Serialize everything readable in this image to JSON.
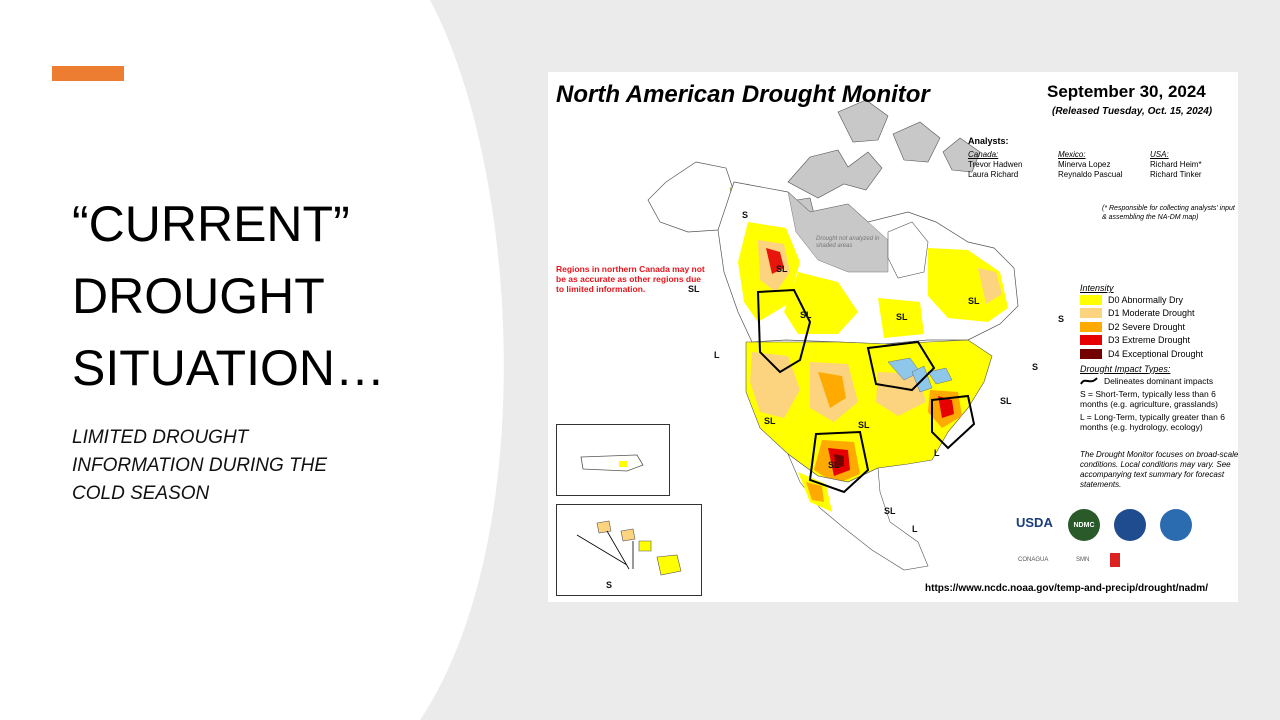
{
  "slide": {
    "title_lines": [
      "“CURRENT”",
      "DROUGHT",
      "SITUATION…"
    ],
    "subtitle_lines": [
      "LIMITED DROUGHT",
      "INFORMATION DURING THE",
      "COLD SEASON"
    ],
    "accent_color": "#ed7d31"
  },
  "map": {
    "title": "North American Drought Monitor",
    "date": "September 30, 2024",
    "release": "(Released Tuesday, Oct. 15, 2024)",
    "analysts_heading": "Analysts:",
    "analysts": [
      {
        "country": "Canada:",
        "names": [
          "Trevor Hadwen",
          "Laura Richard"
        ]
      },
      {
        "country": "Mexico:",
        "names": [
          "Minerva Lopez",
          "Reynaldo Pascual"
        ]
      },
      {
        "country": "USA:",
        "names": [
          "Richard Heim*",
          "Richard Tinker"
        ]
      }
    ],
    "footnote": "(* Responsible for collecting analysts' input & assembling the NA-DM map)",
    "northern_note": "Regions in northern Canada may not be as accurate as other regions due to limited information.",
    "not_analyzed": "Drought not analyzed in shaded areas",
    "legend": {
      "heading": "Intensity",
      "items": [
        {
          "label": "D0 Abnormally Dry",
          "color": "#ffff00"
        },
        {
          "label": "D1 Moderate Drought",
          "color": "#fcd37f"
        },
        {
          "label": "D2 Severe Drought",
          "color": "#ffaa00"
        },
        {
          "label": "D3 Extreme Drought",
          "color": "#e60000"
        },
        {
          "label": "D4 Exceptional Drought",
          "color": "#730000"
        }
      ],
      "impact_heading": "Drought Impact Types:",
      "impact_line": "Delineates dominant impacts",
      "impact_s": "S = Short-Term, typically less than 6 months (e.g. agriculture, grasslands)",
      "impact_l": "L = Long-Term, typically greater than 6 months (e.g. hydrology, ecology)"
    },
    "disclaimer": "The Drought Monitor focuses on broad-scale conditions. Local conditions may vary. See accompanying text summary for forecast statements.",
    "url": "https://www.ncdc.noaa.gov/temp-and-precip/drought/nadm/",
    "logos": {
      "usda": "USDA",
      "ndmc": "NDMC",
      "conagua": "CONAGUA",
      "smn": "SMN"
    },
    "labels": {
      "s": "S",
      "sl": "SL",
      "l": "L"
    }
  }
}
